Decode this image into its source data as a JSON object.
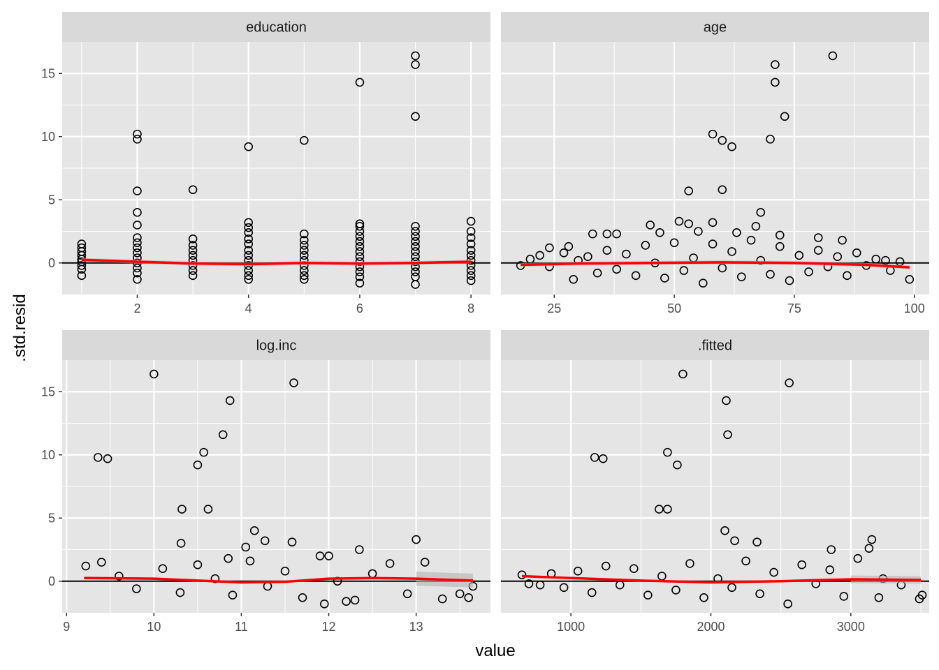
{
  "chart_data": {
    "type": "scatter",
    "facet_layout": "2x2 grid, free x scales, shared y scale",
    "xlabel": "value",
    "ylabel": ".std.resid",
    "y_ticks": [
      0,
      5,
      10,
      15
    ],
    "ylim": [
      -2.5,
      17.5
    ],
    "reference_line_y": 0,
    "colors": {
      "panel_bg": "#e5e5e5",
      "grid": "#ffffff",
      "strip_bg": "#d9d9d9",
      "point_stroke": "#000000",
      "smooth_line": "#ff0000",
      "ribbon": "#b3b3b3",
      "hline": "#000000"
    },
    "panels": [
      {
        "strip": "education",
        "xlim": [
          0.65,
          8.35
        ],
        "x_ticks": [
          2,
          4,
          6,
          8
        ],
        "points": [
          [
            1,
            1.5
          ],
          [
            1,
            1.2
          ],
          [
            1,
            0.9
          ],
          [
            1,
            0.6
          ],
          [
            1,
            0.3
          ],
          [
            1,
            0.1
          ],
          [
            1,
            -0.2
          ],
          [
            1,
            -0.5
          ],
          [
            1,
            -1.0
          ],
          [
            2,
            10.2
          ],
          [
            2,
            9.8
          ],
          [
            2,
            5.7
          ],
          [
            2,
            4.0
          ],
          [
            2,
            3.0
          ],
          [
            2,
            2.0
          ],
          [
            2,
            1.6
          ],
          [
            2,
            1.2
          ],
          [
            2,
            0.8
          ],
          [
            2,
            0.4
          ],
          [
            2,
            0.0
          ],
          [
            2,
            -0.4
          ],
          [
            2,
            -0.8
          ],
          [
            2,
            -1.3
          ],
          [
            3,
            5.8
          ],
          [
            3,
            1.9
          ],
          [
            3,
            1.4
          ],
          [
            3,
            1.0
          ],
          [
            3,
            0.6
          ],
          [
            3,
            0.2
          ],
          [
            3,
            -0.2
          ],
          [
            3,
            -0.6
          ],
          [
            3,
            -1.0
          ],
          [
            4,
            9.2
          ],
          [
            4,
            3.2
          ],
          [
            4,
            2.8
          ],
          [
            4,
            2.4
          ],
          [
            4,
            1.9
          ],
          [
            4,
            1.5
          ],
          [
            4,
            1.0
          ],
          [
            4,
            0.6
          ],
          [
            4,
            0.2
          ],
          [
            4,
            -0.2
          ],
          [
            4,
            -0.6
          ],
          [
            4,
            -1.0
          ],
          [
            4,
            -1.3
          ],
          [
            5,
            9.7
          ],
          [
            5,
            2.3
          ],
          [
            5,
            1.8
          ],
          [
            5,
            1.4
          ],
          [
            5,
            1.0
          ],
          [
            5,
            0.6
          ],
          [
            5,
            0.2
          ],
          [
            5,
            -0.2
          ],
          [
            5,
            -0.6
          ],
          [
            5,
            -1.0
          ],
          [
            5,
            -1.3
          ],
          [
            6,
            14.3
          ],
          [
            6,
            3.1
          ],
          [
            6,
            2.9
          ],
          [
            6,
            2.5
          ],
          [
            6,
            2.1
          ],
          [
            6,
            1.7
          ],
          [
            6,
            1.3
          ],
          [
            6,
            0.9
          ],
          [
            6,
            0.5
          ],
          [
            6,
            0.1
          ],
          [
            6,
            -0.3
          ],
          [
            6,
            -0.7
          ],
          [
            6,
            -1.1
          ],
          [
            6,
            -1.6
          ],
          [
            7,
            16.4
          ],
          [
            7,
            15.7
          ],
          [
            7,
            11.6
          ],
          [
            7,
            2.9
          ],
          [
            7,
            2.5
          ],
          [
            7,
            2.1
          ],
          [
            7,
            1.7
          ],
          [
            7,
            1.3
          ],
          [
            7,
            0.9
          ],
          [
            7,
            0.5
          ],
          [
            7,
            0.1
          ],
          [
            7,
            -0.3
          ],
          [
            7,
            -0.7
          ],
          [
            7,
            -1.1
          ],
          [
            7,
            -1.7
          ],
          [
            8,
            3.3
          ],
          [
            8,
            2.5
          ],
          [
            8,
            2.0
          ],
          [
            8,
            1.5
          ],
          [
            8,
            1.0
          ],
          [
            8,
            0.6
          ],
          [
            8,
            0.2
          ],
          [
            8,
            -0.2
          ],
          [
            8,
            -0.6
          ],
          [
            8,
            -1.0
          ],
          [
            8,
            -1.4
          ]
        ],
        "smooth": [
          [
            1,
            0.25
          ],
          [
            2,
            0.1
          ],
          [
            3,
            -0.05
          ],
          [
            4,
            -0.1
          ],
          [
            5,
            0.0
          ],
          [
            6,
            -0.05
          ],
          [
            7,
            0.0
          ],
          [
            8,
            0.1
          ]
        ],
        "ribbon_halfwidth": 0.15
      },
      {
        "strip": "age",
        "xlim": [
          13.9,
          103.1
        ],
        "x_ticks": [
          25,
          50,
          75,
          100
        ],
        "points": [
          [
            83,
            16.4
          ],
          [
            71,
            15.7
          ],
          [
            71,
            14.3
          ],
          [
            73,
            11.6
          ],
          [
            58,
            10.2
          ],
          [
            70,
            9.8
          ],
          [
            60,
            9.7
          ],
          [
            62,
            9.2
          ],
          [
            53,
            5.7
          ],
          [
            60,
            5.8
          ],
          [
            68,
            4.0
          ],
          [
            51,
            3.3
          ],
          [
            53,
            3.1
          ],
          [
            58,
            3.2
          ],
          [
            67,
            2.9
          ],
          [
            45,
            3.0
          ],
          [
            36,
            2.3
          ],
          [
            38,
            2.3
          ],
          [
            28,
            1.3
          ],
          [
            33,
            2.3
          ],
          [
            47,
            2.4
          ],
          [
            55,
            2.5
          ],
          [
            63,
            2.4
          ],
          [
            72,
            2.2
          ],
          [
            80,
            2.0
          ],
          [
            85,
            1.8
          ],
          [
            18,
            -0.2
          ],
          [
            20,
            0.3
          ],
          [
            22,
            0.6
          ],
          [
            24,
            -0.3
          ],
          [
            24,
            1.2
          ],
          [
            27,
            0.8
          ],
          [
            29,
            -1.3
          ],
          [
            30,
            0.2
          ],
          [
            32,
            0.5
          ],
          [
            34,
            -0.8
          ],
          [
            36,
            1.0
          ],
          [
            38,
            -0.5
          ],
          [
            40,
            0.7
          ],
          [
            42,
            -1.0
          ],
          [
            44,
            1.4
          ],
          [
            46,
            0.0
          ],
          [
            48,
            -1.2
          ],
          [
            50,
            1.6
          ],
          [
            52,
            -0.6
          ],
          [
            54,
            0.4
          ],
          [
            56,
            -1.6
          ],
          [
            58,
            1.5
          ],
          [
            60,
            -0.4
          ],
          [
            62,
            0.9
          ],
          [
            64,
            -1.1
          ],
          [
            66,
            1.8
          ],
          [
            68,
            0.2
          ],
          [
            70,
            -0.9
          ],
          [
            72,
            1.3
          ],
          [
            74,
            -1.4
          ],
          [
            76,
            0.6
          ],
          [
            78,
            -0.7
          ],
          [
            80,
            1.0
          ],
          [
            82,
            -0.3
          ],
          [
            84,
            0.5
          ],
          [
            86,
            -1.0
          ],
          [
            88,
            0.8
          ],
          [
            90,
            -0.2
          ],
          [
            92,
            0.3
          ],
          [
            94,
            0.2
          ],
          [
            99,
            -1.3
          ],
          [
            95,
            -0.6
          ],
          [
            97,
            0.1
          ]
        ],
        "smooth": [
          [
            18,
            -0.15
          ],
          [
            30,
            -0.05
          ],
          [
            45,
            0.0
          ],
          [
            60,
            0.05
          ],
          [
            75,
            0.0
          ],
          [
            90,
            -0.15
          ],
          [
            99,
            -0.35
          ]
        ],
        "ribbon_halfwidth": 0.15
      },
      {
        "strip": "log.inc",
        "xlim": [
          8.95,
          13.85
        ],
        "x_ticks": [
          9,
          10,
          11,
          12,
          13
        ],
        "points": [
          [
            10.0,
            16.4
          ],
          [
            11.6,
            15.7
          ],
          [
            10.87,
            14.3
          ],
          [
            10.79,
            11.6
          ],
          [
            10.57,
            10.2
          ],
          [
            9.36,
            9.8
          ],
          [
            9.47,
            9.7
          ],
          [
            10.5,
            9.2
          ],
          [
            10.32,
            5.7
          ],
          [
            10.62,
            5.7
          ],
          [
            11.15,
            4.0
          ],
          [
            10.31,
            3.0
          ],
          [
            11.58,
            3.1
          ],
          [
            11.27,
            3.2
          ],
          [
            13.0,
            3.3
          ],
          [
            11.05,
            2.7
          ],
          [
            12.35,
            2.5
          ],
          [
            9.22,
            1.2
          ],
          [
            9.4,
            1.5
          ],
          [
            9.6,
            0.4
          ],
          [
            9.8,
            -0.6
          ],
          [
            10.1,
            1.0
          ],
          [
            10.3,
            -0.9
          ],
          [
            10.5,
            1.3
          ],
          [
            10.7,
            0.2
          ],
          [
            10.9,
            -1.1
          ],
          [
            11.1,
            1.6
          ],
          [
            11.3,
            -0.4
          ],
          [
            11.5,
            0.8
          ],
          [
            11.7,
            -1.3
          ],
          [
            11.9,
            2.0
          ],
          [
            12.1,
            0.0
          ],
          [
            12.3,
            -1.5
          ],
          [
            12.5,
            0.6
          ],
          [
            12.7,
            1.4
          ],
          [
            12.9,
            -1.0
          ],
          [
            13.1,
            1.5
          ],
          [
            13.3,
            -1.4
          ],
          [
            13.5,
            -1.0
          ],
          [
            13.6,
            -1.3
          ],
          [
            13.65,
            -0.4
          ],
          [
            11.95,
            -1.8
          ],
          [
            12.2,
            -1.6
          ],
          [
            12.0,
            2.0
          ],
          [
            10.85,
            1.8
          ]
        ],
        "smooth": [
          [
            9.2,
            0.25
          ],
          [
            10.0,
            0.2
          ],
          [
            11.0,
            -0.1
          ],
          [
            11.5,
            -0.05
          ],
          [
            12.0,
            0.2
          ],
          [
            12.5,
            0.25
          ],
          [
            13.0,
            0.2
          ],
          [
            13.65,
            0.05
          ]
        ],
        "ribbon_start": 12.6,
        "ribbon_halfwidth": 0.55
      },
      {
        "strip": ".fitted",
        "xlim": [
          500,
          3560
        ],
        "x_ticks": [
          1000,
          2000,
          3000
        ],
        "points": [
          [
            1800,
            16.4
          ],
          [
            2560,
            15.7
          ],
          [
            2110,
            14.3
          ],
          [
            2120,
            11.6
          ],
          [
            1690,
            10.2
          ],
          [
            1170,
            9.8
          ],
          [
            1230,
            9.7
          ],
          [
            1760,
            9.2
          ],
          [
            1630,
            5.7
          ],
          [
            1690,
            5.7
          ],
          [
            2100,
            4.0
          ],
          [
            2170,
            3.2
          ],
          [
            3150,
            3.3
          ],
          [
            2330,
            3.1
          ],
          [
            2860,
            2.5
          ],
          [
            3130,
            2.6
          ],
          [
            650,
            0.5
          ],
          [
            700,
            -0.2
          ],
          [
            780,
            -0.3
          ],
          [
            860,
            0.6
          ],
          [
            950,
            -0.5
          ],
          [
            1050,
            0.8
          ],
          [
            1150,
            -0.9
          ],
          [
            1250,
            1.2
          ],
          [
            1350,
            -0.3
          ],
          [
            1450,
            1.0
          ],
          [
            1550,
            -1.1
          ],
          [
            1650,
            0.4
          ],
          [
            1750,
            -0.7
          ],
          [
            1850,
            1.4
          ],
          [
            1950,
            -1.3
          ],
          [
            2050,
            0.2
          ],
          [
            2150,
            -0.5
          ],
          [
            2250,
            1.6
          ],
          [
            2350,
            -1.0
          ],
          [
            2450,
            0.7
          ],
          [
            2550,
            -1.8
          ],
          [
            2650,
            1.3
          ],
          [
            2750,
            -0.2
          ],
          [
            2850,
            0.9
          ],
          [
            2950,
            -1.2
          ],
          [
            3050,
            1.8
          ],
          [
            3200,
            -1.3
          ],
          [
            3230,
            0.2
          ],
          [
            3360,
            -0.3
          ],
          [
            3490,
            -1.4
          ],
          [
            3510,
            -1.1
          ]
        ],
        "smooth": [
          [
            650,
            0.4
          ],
          [
            1000,
            0.25
          ],
          [
            1500,
            0.05
          ],
          [
            2000,
            -0.1
          ],
          [
            2500,
            0.0
          ],
          [
            3000,
            0.15
          ],
          [
            3500,
            0.1
          ]
        ],
        "ribbon_start": 3000,
        "ribbon_halfwidth": 0.3
      }
    ]
  }
}
